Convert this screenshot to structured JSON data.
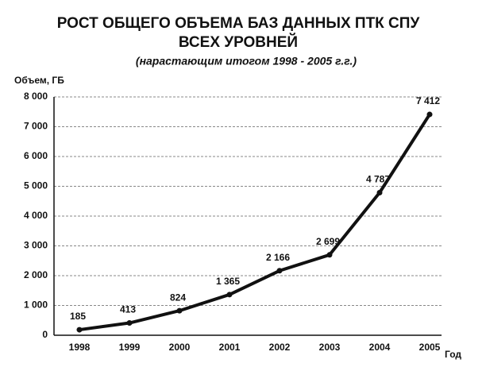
{
  "chart_data": {
    "type": "line",
    "title": [
      "РОСТ ОБЩЕГО ОБЪЕМА БАЗ ДАННЫХ ПТК СПУ",
      "ВСЕХ УРОВНЕЙ"
    ],
    "subtitle": "(нарастающим итогом 1998 - 2005 г.г.)",
    "y_label": "Объем, ГБ",
    "x_label": "Год",
    "categories": [
      "1998",
      "1999",
      "2000",
      "2001",
      "2002",
      "2003",
      "2004",
      "2005"
    ],
    "series": [
      {
        "name": "Объем",
        "color": "#111111",
        "values": [
          185,
          413,
          824,
          1365,
          2166,
          2699,
          4787,
          7412
        ],
        "value_labels": [
          "185",
          "413",
          "824",
          "1 365",
          "2 166",
          "2 699",
          "4 787",
          "7 412"
        ]
      }
    ],
    "ylim": [
      0,
      8000
    ],
    "yticks": [
      0,
      {
        "value": 1000,
        "label": "1 000"
      },
      {
        "value": 2000,
        "label": "2 000"
      },
      {
        "value": 3000,
        "label": "3 000"
      },
      {
        "value": 4000,
        "label": "4 000"
      },
      {
        "value": 5000,
        "label": "5 000"
      },
      {
        "value": 6000,
        "label": "6 000"
      },
      {
        "value": 7000,
        "label": "7 000"
      },
      {
        "value": 8000,
        "label": "8 000"
      }
    ],
    "grid": true
  }
}
